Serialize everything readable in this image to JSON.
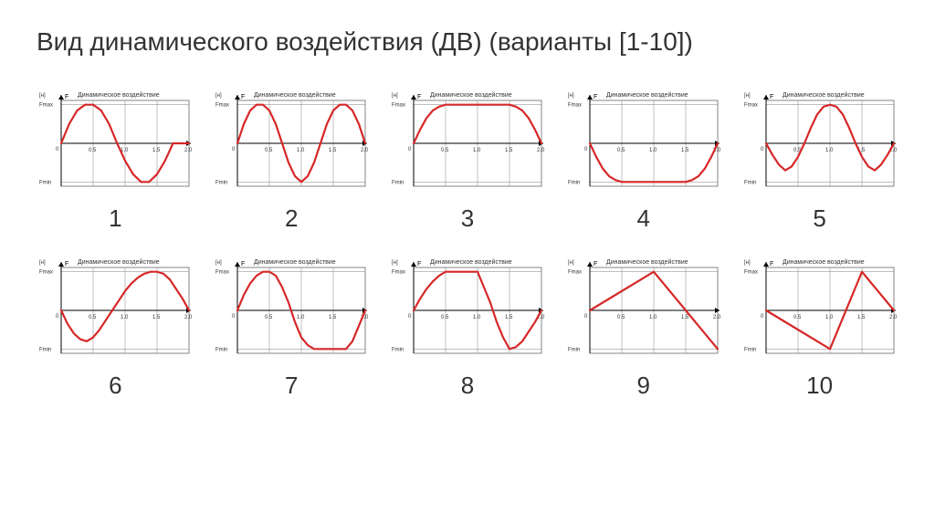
{
  "title": "Вид динамического воздействия (ДВ) (варианты [1-10])",
  "chart_common": {
    "subtitle": "Динамическое воздействие",
    "y_unit": "[н]",
    "y_symbol": "F",
    "y_top_label": "Fmax",
    "y_bot_label": "Fmin",
    "x_ticks": [
      "0",
      "0.5",
      "1.0",
      "1.5",
      "2.0"
    ],
    "grid_color": "#999999",
    "border_color": "#666666",
    "line_color": "#d62728",
    "line_width": 2.2,
    "title_fontsize": 7,
    "tick_fontsize": 6,
    "label_fontsize": 6,
    "bg_color": "#ffffff"
  },
  "charts": [
    {
      "num": "1",
      "points": [
        [
          0,
          0
        ],
        [
          0.125,
          0.5
        ],
        [
          0.25,
          0.85
        ],
        [
          0.375,
          1
        ],
        [
          0.5,
          1
        ],
        [
          0.625,
          0.85
        ],
        [
          0.75,
          0.5
        ],
        [
          0.875,
          0
        ],
        [
          1.0,
          -0.45
        ],
        [
          1.125,
          -0.8
        ],
        [
          1.25,
          -1
        ],
        [
          1.375,
          -1
        ],
        [
          1.5,
          -0.8
        ],
        [
          1.625,
          -0.45
        ],
        [
          1.75,
          0
        ],
        [
          2.0,
          0
        ]
      ]
    },
    {
      "num": "2",
      "points": [
        [
          0,
          0
        ],
        [
          0.1,
          0.5
        ],
        [
          0.2,
          0.85
        ],
        [
          0.3,
          1
        ],
        [
          0.4,
          1
        ],
        [
          0.5,
          0.85
        ],
        [
          0.6,
          0.5
        ],
        [
          0.7,
          0
        ],
        [
          0.8,
          -0.5
        ],
        [
          0.9,
          -0.85
        ],
        [
          1.0,
          -1
        ],
        [
          1.1,
          -0.85
        ],
        [
          1.2,
          -0.5
        ],
        [
          1.3,
          0
        ],
        [
          1.4,
          0.5
        ],
        [
          1.5,
          0.85
        ],
        [
          1.6,
          1
        ],
        [
          1.7,
          1
        ],
        [
          1.8,
          0.85
        ],
        [
          1.9,
          0.5
        ],
        [
          2.0,
          0
        ]
      ]
    },
    {
      "num": "3",
      "points": [
        [
          0,
          0
        ],
        [
          0.1,
          0.35
        ],
        [
          0.2,
          0.65
        ],
        [
          0.3,
          0.85
        ],
        [
          0.4,
          0.95
        ],
        [
          0.5,
          1
        ],
        [
          1.5,
          1
        ],
        [
          1.6,
          0.95
        ],
        [
          1.7,
          0.85
        ],
        [
          1.8,
          0.65
        ],
        [
          1.9,
          0.35
        ],
        [
          2.0,
          0
        ]
      ]
    },
    {
      "num": "4",
      "points": [
        [
          0,
          0
        ],
        [
          0.1,
          -0.35
        ],
        [
          0.2,
          -0.65
        ],
        [
          0.3,
          -0.85
        ],
        [
          0.4,
          -0.95
        ],
        [
          0.5,
          -1
        ],
        [
          1.5,
          -1
        ],
        [
          1.6,
          -0.95
        ],
        [
          1.7,
          -0.85
        ],
        [
          1.8,
          -0.65
        ],
        [
          1.9,
          -0.35
        ],
        [
          2.0,
          0
        ]
      ]
    },
    {
      "num": "5",
      "points": [
        [
          0,
          0
        ],
        [
          0.1,
          -0.3
        ],
        [
          0.2,
          -0.55
        ],
        [
          0.3,
          -0.7
        ],
        [
          0.4,
          -0.6
        ],
        [
          0.5,
          -0.35
        ],
        [
          0.6,
          0
        ],
        [
          0.7,
          0.4
        ],
        [
          0.8,
          0.75
        ],
        [
          0.9,
          0.95
        ],
        [
          1.0,
          1
        ],
        [
          1.1,
          0.95
        ],
        [
          1.2,
          0.75
        ],
        [
          1.3,
          0.4
        ],
        [
          1.4,
          0
        ],
        [
          1.5,
          -0.35
        ],
        [
          1.6,
          -0.6
        ],
        [
          1.7,
          -0.7
        ],
        [
          1.8,
          -0.55
        ],
        [
          1.9,
          -0.3
        ],
        [
          2.0,
          0
        ]
      ]
    },
    {
      "num": "6",
      "points": [
        [
          0,
          0
        ],
        [
          0.1,
          -0.35
        ],
        [
          0.2,
          -0.6
        ],
        [
          0.3,
          -0.75
        ],
        [
          0.4,
          -0.8
        ],
        [
          0.5,
          -0.7
        ],
        [
          0.6,
          -0.5
        ],
        [
          0.7,
          -0.25
        ],
        [
          0.8,
          0
        ],
        [
          0.9,
          0.25
        ],
        [
          1.0,
          0.5
        ],
        [
          1.1,
          0.7
        ],
        [
          1.2,
          0.85
        ],
        [
          1.3,
          0.95
        ],
        [
          1.4,
          1
        ],
        [
          1.5,
          1
        ],
        [
          1.6,
          0.95
        ],
        [
          1.7,
          0.8
        ],
        [
          1.8,
          0.55
        ],
        [
          1.9,
          0.3
        ],
        [
          2.0,
          0
        ]
      ]
    },
    {
      "num": "7",
      "points": [
        [
          0,
          0
        ],
        [
          0.1,
          0.4
        ],
        [
          0.2,
          0.7
        ],
        [
          0.3,
          0.9
        ],
        [
          0.4,
          1
        ],
        [
          0.5,
          1
        ],
        [
          0.6,
          0.9
        ],
        [
          0.7,
          0.6
        ],
        [
          0.8,
          0.2
        ],
        [
          0.9,
          -0.3
        ],
        [
          1.0,
          -0.7
        ],
        [
          1.1,
          -0.9
        ],
        [
          1.2,
          -1
        ],
        [
          1.7,
          -1
        ],
        [
          1.8,
          -0.8
        ],
        [
          1.9,
          -0.4
        ],
        [
          2.0,
          0
        ]
      ]
    },
    {
      "num": "8",
      "points": [
        [
          0,
          0
        ],
        [
          0.1,
          0.3
        ],
        [
          0.2,
          0.55
        ],
        [
          0.3,
          0.75
        ],
        [
          0.4,
          0.9
        ],
        [
          0.5,
          1
        ],
        [
          1.0,
          1
        ],
        [
          1.1,
          0.6
        ],
        [
          1.2,
          0.2
        ],
        [
          1.3,
          -0.3
        ],
        [
          1.4,
          -0.7
        ],
        [
          1.5,
          -1
        ],
        [
          1.6,
          -0.95
        ],
        [
          1.7,
          -0.8
        ],
        [
          1.8,
          -0.55
        ],
        [
          1.9,
          -0.3
        ],
        [
          2.0,
          0
        ]
      ]
    },
    {
      "num": "9",
      "points": [
        [
          0,
          0
        ],
        [
          1.0,
          1
        ],
        [
          2.0,
          -1
        ]
      ]
    },
    {
      "num": "10",
      "points": [
        [
          0,
          0
        ],
        [
          1.0,
          -1
        ],
        [
          1.5,
          1
        ],
        [
          2.0,
          0
        ]
      ]
    }
  ]
}
